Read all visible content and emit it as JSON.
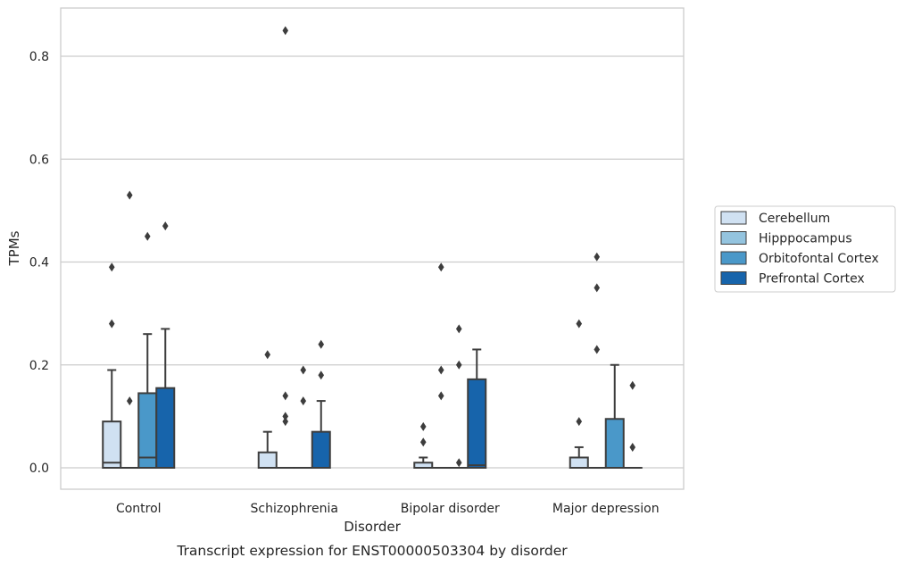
{
  "chart_data": {
    "type": "box",
    "title": "",
    "caption": "Transcript expression for ENST00000503304 by disorder",
    "xlabel": "Disorder",
    "ylabel": "TPMs",
    "ylim": [
      -0.042,
      0.894
    ],
    "yticks": [
      "0.0",
      "0.2",
      "0.4",
      "0.6",
      "0.8"
    ],
    "ytick_values": [
      0.0,
      0.2,
      0.4,
      0.6,
      0.8
    ],
    "grid": "horizontal",
    "legend_position": "right",
    "categories": [
      "Control",
      "Schizophrenia",
      "Bipolar disorder",
      "Major depression"
    ],
    "series": [
      {
        "name": "Cerebellum",
        "color": "#d0e1f2",
        "boxes": [
          {
            "q1": 0.0,
            "median": 0.01,
            "q3": 0.09,
            "whisker_low": 0.0,
            "whisker_high": 0.19,
            "outliers": [
              0.28,
              0.39
            ]
          },
          {
            "q1": 0.0,
            "median": 0.0,
            "q3": 0.03,
            "whisker_low": 0.0,
            "whisker_high": 0.07,
            "outliers": [
              0.22
            ]
          },
          {
            "q1": 0.0,
            "median": 0.0,
            "q3": 0.01,
            "whisker_low": 0.0,
            "whisker_high": 0.02,
            "outliers": [
              0.05,
              0.08
            ]
          },
          {
            "q1": 0.0,
            "median": 0.0,
            "q3": 0.02,
            "whisker_low": 0.0,
            "whisker_high": 0.04,
            "outliers": [
              0.09,
              0.28
            ]
          }
        ]
      },
      {
        "name": "Hipppocampus",
        "color": "#94c4df",
        "boxes": [
          {
            "q1": 0.0,
            "median": 0.0,
            "q3": 0.0,
            "whisker_low": 0.0,
            "whisker_high": 0.0,
            "outliers": [
              0.13,
              0.53
            ]
          },
          {
            "q1": 0.0,
            "median": 0.0,
            "q3": 0.0,
            "whisker_low": 0.0,
            "whisker_high": 0.0,
            "outliers": [
              0.09,
              0.1,
              0.14,
              0.85
            ]
          },
          {
            "q1": 0.0,
            "median": 0.0,
            "q3": 0.0,
            "whisker_low": 0.0,
            "whisker_high": 0.0,
            "outliers": [
              0.14,
              0.19,
              0.39
            ]
          },
          {
            "q1": 0.0,
            "median": 0.0,
            "q3": 0.0,
            "whisker_low": 0.0,
            "whisker_high": 0.0,
            "outliers": [
              0.23,
              0.35,
              0.41
            ]
          }
        ]
      },
      {
        "name": "Orbitofontal Cortex",
        "color": "#4a98c9",
        "boxes": [
          {
            "q1": 0.0,
            "median": 0.02,
            "q3": 0.145,
            "whisker_low": 0.0,
            "whisker_high": 0.26,
            "outliers": [
              0.45
            ]
          },
          {
            "q1": 0.0,
            "median": 0.0,
            "q3": 0.0,
            "whisker_low": 0.0,
            "whisker_high": 0.0,
            "outliers": [
              0.13,
              0.19
            ]
          },
          {
            "q1": 0.0,
            "median": 0.0,
            "q3": 0.0,
            "whisker_low": 0.0,
            "whisker_high": 0.0,
            "outliers": [
              0.01,
              0.2,
              0.27
            ]
          },
          {
            "q1": 0.0,
            "median": 0.0,
            "q3": 0.095,
            "whisker_low": 0.0,
            "whisker_high": 0.2,
            "outliers": []
          }
        ]
      },
      {
        "name": "Prefrontal Cortex",
        "color": "#1764ab",
        "boxes": [
          {
            "q1": 0.0,
            "median": 0.0,
            "q3": 0.155,
            "whisker_low": 0.0,
            "whisker_high": 0.27,
            "outliers": [
              0.47
            ]
          },
          {
            "q1": 0.0,
            "median": 0.0,
            "q3": 0.07,
            "whisker_low": 0.0,
            "whisker_high": 0.13,
            "outliers": [
              0.18,
              0.24
            ]
          },
          {
            "q1": 0.0,
            "median": 0.005,
            "q3": 0.172,
            "whisker_low": 0.0,
            "whisker_high": 0.23,
            "outliers": []
          },
          {
            "q1": 0.0,
            "median": 0.0,
            "q3": 0.0,
            "whisker_low": 0.0,
            "whisker_high": 0.0,
            "outliers": [
              0.04,
              0.16
            ]
          }
        ]
      }
    ]
  }
}
